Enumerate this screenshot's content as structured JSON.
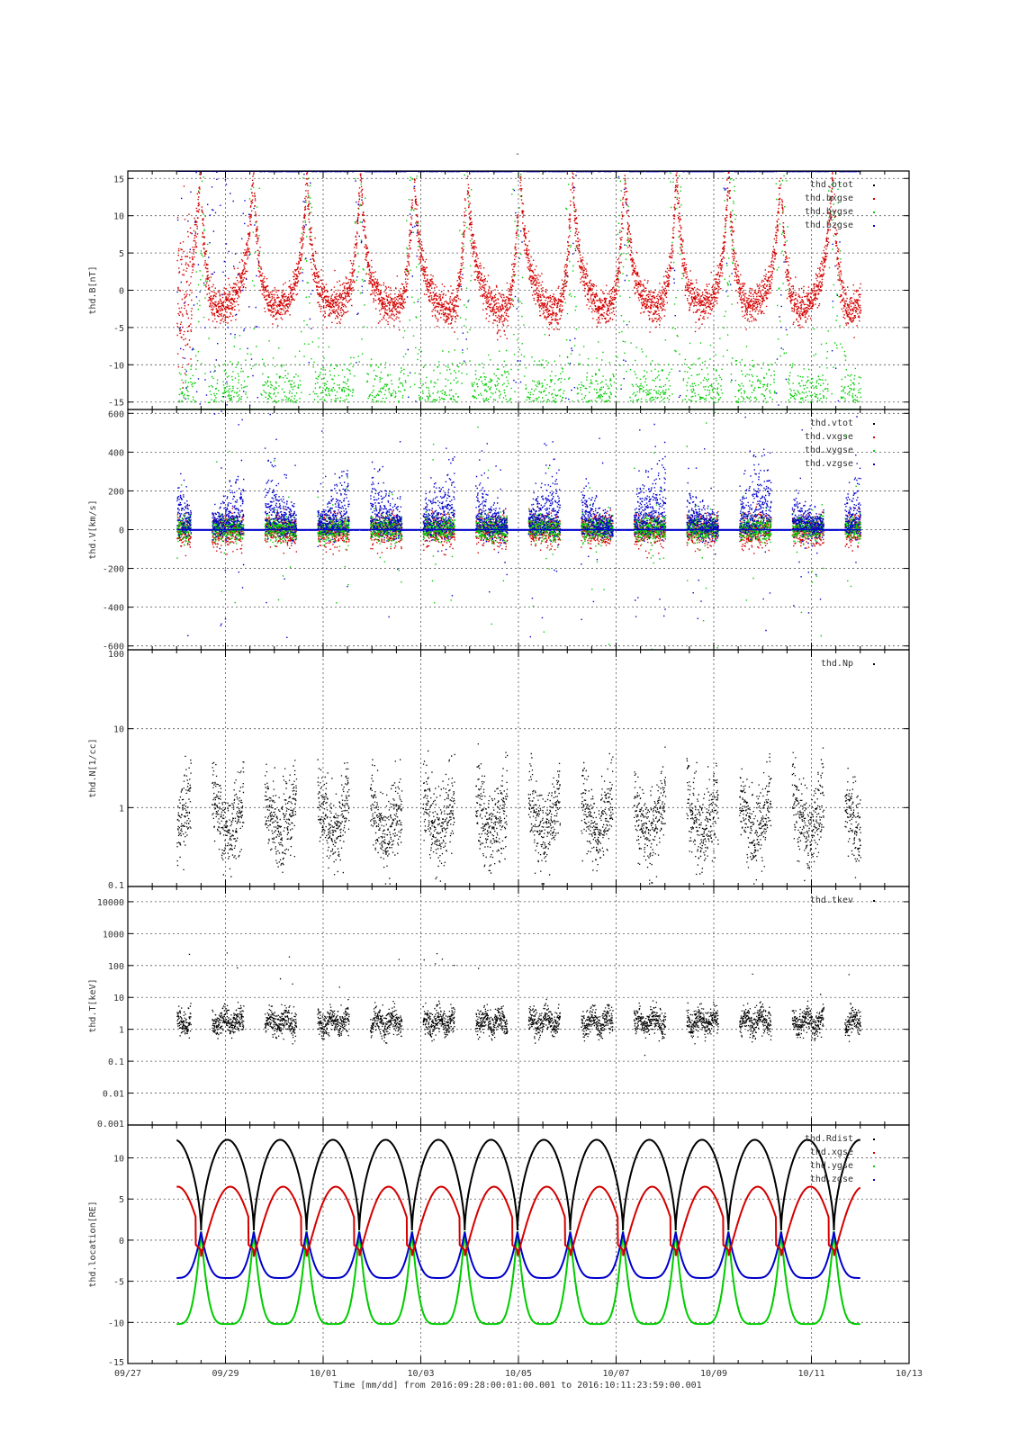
{
  "title": "-",
  "colors": {
    "black": "#000000",
    "red": "#d40000",
    "green": "#00cc00",
    "blue": "#0000cc",
    "grid": "#555555"
  },
  "footer": {
    "time_label": "Time [mm/dd]",
    "from_label": "from",
    "to_label": "to",
    "start": "2016:09:28:00:01:00.001",
    "end": "2016:10:11:23:59:00.001"
  },
  "chart_data": [
    {
      "type": "scatter",
      "id": "B",
      "ylabel": "thd.B[nT]",
      "ylim": [
        -16,
        16
      ],
      "yscale": "linear",
      "yticks": [
        15,
        10,
        5,
        0,
        -5,
        -10,
        -15
      ],
      "yticklabels": [
        "15",
        "10",
        "5",
        "0",
        "-5",
        "-10",
        "-15"
      ],
      "grid": true,
      "legend_position": "top-right",
      "series": [
        {
          "name": "thd.btot",
          "color": "#000000"
        },
        {
          "name": "thd.bxgse",
          "color": "#d40000"
        },
        {
          "name": "thd.bygse",
          "color": "#00cc00"
        },
        {
          "name": "thd.bzgse",
          "color": "#0000cc"
        }
      ]
    },
    {
      "type": "scatter",
      "id": "V",
      "ylabel": "thd.V[km/s]",
      "ylim": [
        -620,
        620
      ],
      "yscale": "linear",
      "yticks": [
        600,
        400,
        200,
        0,
        -200,
        -400,
        -600
      ],
      "yticklabels": [
        "600",
        "400",
        "200",
        "0",
        "-200",
        "-400",
        "-600"
      ],
      "grid": true,
      "legend_position": "top-right",
      "series": [
        {
          "name": "thd.vtot",
          "color": "#000000"
        },
        {
          "name": "thd.vxgse",
          "color": "#d40000"
        },
        {
          "name": "thd.vygse",
          "color": "#00cc00"
        },
        {
          "name": "thd.vzgse",
          "color": "#0000cc"
        }
      ]
    },
    {
      "type": "scatter",
      "id": "N",
      "ylabel": "thd.N[1/cc]",
      "ylim": [
        0.1,
        100
      ],
      "yscale": "log",
      "yticks": [
        100,
        10,
        1,
        0.1
      ],
      "yticklabels": [
        "100",
        "10",
        "1",
        "0.1"
      ],
      "grid": true,
      "legend_position": "top-right",
      "series": [
        {
          "name": "thd.Np",
          "color": "#000000"
        }
      ]
    },
    {
      "type": "scatter",
      "id": "T",
      "ylabel": "thd.T[keV]",
      "ylim": [
        0.001,
        30000
      ],
      "yscale": "log",
      "yticks": [
        10000,
        1000,
        100,
        10,
        1,
        0.1,
        0.01,
        0.001
      ],
      "yticklabels": [
        "10000",
        "1000",
        "100",
        "10",
        "1",
        "0.1",
        "0.01",
        "0.001"
      ],
      "grid": true,
      "legend_position": "top-right",
      "series": [
        {
          "name": "thd.tkev",
          "color": "#000000"
        }
      ]
    },
    {
      "type": "line",
      "id": "L",
      "ylabel": "thd.location[RE]",
      "ylim": [
        -15,
        14
      ],
      "yscale": "linear",
      "yticks": [
        10,
        5,
        0,
        -5,
        -10,
        -15
      ],
      "yticklabels": [
        "10",
        "5",
        "0",
        "-5",
        "-10",
        "-15"
      ],
      "grid": true,
      "legend_position": "top-right",
      "series": [
        {
          "name": "thd.Rdist",
          "color": "#000000"
        },
        {
          "name": "thd.xgse",
          "color": "#d40000"
        },
        {
          "name": "thd.ygse",
          "color": "#00cc00"
        },
        {
          "name": "thd.zgse",
          "color": "#0000cc"
        }
      ]
    }
  ],
  "x_axis": {
    "xlim": [
      "09/27",
      "10/13"
    ],
    "ticks": [
      "09/27",
      "09/29",
      "10/01",
      "10/03",
      "10/05",
      "10/07",
      "10/09",
      "10/11",
      "10/13"
    ],
    "data_range": [
      "2016-09-28T00:01:00",
      "2016-10-11T23:59:00"
    ]
  }
}
